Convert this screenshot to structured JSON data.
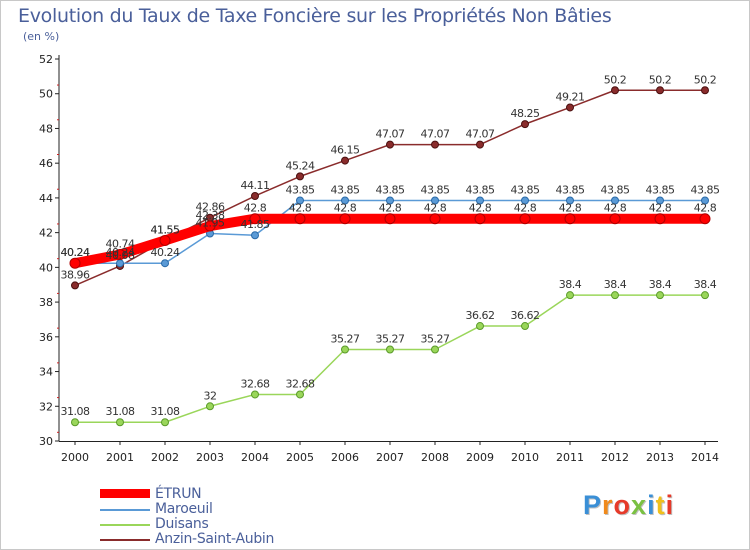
{
  "chart_data": {
    "type": "line",
    "title": "Evolution du Taux de Taxe Foncière sur les Propriétés Non Bâties",
    "ylabel": "(en %)",
    "xlabel": "",
    "ylim": [
      30,
      52
    ],
    "yticks": [
      "30",
      "32",
      "34",
      "36",
      "38",
      "40",
      "42",
      "44",
      "46",
      "48",
      "50",
      "52"
    ],
    "categories": [
      "2000",
      "2001",
      "2002",
      "2003",
      "2004",
      "2005",
      "2006",
      "2007",
      "2008",
      "2009",
      "2010",
      "2011",
      "2012",
      "2013",
      "2014"
    ],
    "series": [
      {
        "name": "ÉTRUN",
        "color": "#ff0000",
        "values": [
          40.24,
          40.74,
          41.55,
          42.38,
          42.8,
          42.8,
          42.8,
          42.8,
          42.8,
          42.8,
          42.8,
          42.8,
          42.8,
          42.8,
          42.8
        ],
        "labels": [
          "40.24",
          "40.74",
          "41.55",
          "42.38",
          "42.8",
          "42.8",
          "42.8",
          "42.8",
          "42.8",
          "42.8",
          "42.8",
          "42.8",
          "42.8",
          "42.8",
          "42.8"
        ]
      },
      {
        "name": "Maroeuil",
        "color": "#5a9ad6",
        "values": [
          40.24,
          40.24,
          40.24,
          41.95,
          41.85,
          43.85,
          43.85,
          43.85,
          43.85,
          43.85,
          43.85,
          43.85,
          43.85,
          43.85,
          43.85
        ],
        "labels": [
          "40.24",
          "40.24",
          "40.24",
          "41.95",
          "41.85",
          "43.85",
          "43.85",
          "43.85",
          "43.85",
          "43.85",
          "43.85",
          "43.85",
          "43.85",
          "43.85",
          "43.85"
        ]
      },
      {
        "name": "Duisans",
        "color": "#9ad65a",
        "values": [
          31.08,
          31.08,
          31.08,
          32,
          32.68,
          32.68,
          35.27,
          35.27,
          35.27,
          36.62,
          36.62,
          38.4,
          38.4,
          38.4,
          38.4
        ],
        "labels": [
          "31.08",
          "31.08",
          "31.08",
          "32",
          "32.68",
          "32.68",
          "35.27",
          "35.27",
          "35.27",
          "36.62",
          "36.62",
          "38.4",
          "38.4",
          "38.4",
          "38.4"
        ]
      },
      {
        "name": "Anzin-Saint-Aubin",
        "color": "#8a2c2c",
        "values": [
          38.96,
          40.08,
          41.55,
          42.86,
          44.11,
          45.24,
          46.15,
          47.07,
          47.07,
          47.07,
          48.25,
          49.21,
          50.2,
          50.2,
          50.2
        ],
        "labels": [
          "38.96",
          "40.08",
          "41.55",
          "42.86",
          "44.11",
          "45.24",
          "46.15",
          "47.07",
          "47.07",
          "47.07",
          "48.25",
          "49.21",
          "50.2",
          "50.2",
          "50.2"
        ]
      }
    ],
    "legend_position": "bottom-left",
    "grid": false
  },
  "logo_text": "Proxiti"
}
